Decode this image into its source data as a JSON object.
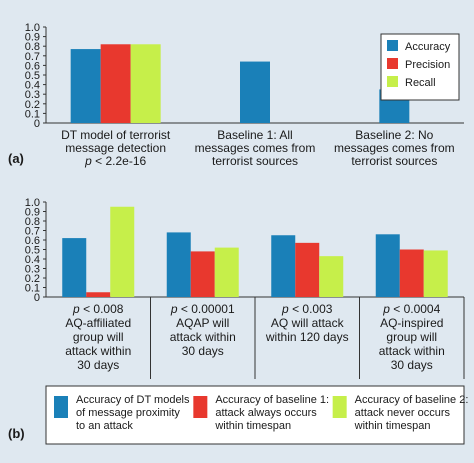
{
  "colors": {
    "background": "#dfe8f0",
    "accuracy": "#1a80b8",
    "precision": "#e8382e",
    "recall": "#c6ef4a"
  },
  "chart_data": [
    {
      "panel_label": "(a)",
      "type": "bar",
      "ylim": [
        0,
        1.0
      ],
      "yticks": [
        "0",
        "0.1",
        "0.2",
        "0.3",
        "0.4",
        "0.5",
        "0.6",
        "0.7",
        "0.8",
        "0.9",
        "1.0"
      ],
      "grid": false,
      "legend_position": "top-right",
      "categories": [
        {
          "lines": [
            "DT model of terrorist",
            "message detection"
          ],
          "pvalue": "p < 2.2e-16"
        },
        {
          "lines": [
            "Baseline 1: All",
            "messages comes from",
            "terrorist sources"
          ],
          "pvalue": ""
        },
        {
          "lines": [
            "Baseline 2: No",
            "messages comes from",
            "terrorist sources"
          ],
          "pvalue": ""
        }
      ],
      "series": [
        {
          "name": "Accuracy",
          "color_key": "accuracy",
          "values": [
            0.77,
            0.64,
            0.35
          ]
        },
        {
          "name": "Precision",
          "color_key": "precision",
          "values": [
            0.82,
            null,
            null
          ]
        },
        {
          "name": "Recall",
          "color_key": "recall",
          "values": [
            0.82,
            null,
            null
          ]
        }
      ]
    },
    {
      "panel_label": "(b)",
      "type": "bar",
      "ylim": [
        0,
        1.0
      ],
      "yticks": [
        "0",
        "0.1",
        "0.2",
        "0.3",
        "0.4",
        "0.5",
        "0.6",
        "0.7",
        "0.8",
        "0.9",
        "1.0"
      ],
      "grid": false,
      "legend_position": "bottom",
      "categories": [
        {
          "pvalue": "p < 0.008",
          "lines": [
            "AQ-affiliated",
            "group will",
            "attack within",
            "30 days"
          ]
        },
        {
          "pvalue": "p < 0.00001",
          "lines": [
            "AQAP will",
            "attack within",
            "30 days"
          ]
        },
        {
          "pvalue": "p < 0.003",
          "lines": [
            "AQ will attack",
            "within 120 days"
          ]
        },
        {
          "pvalue": "p < 0.0004",
          "lines": [
            "AQ-inspired",
            "group will",
            "attack within",
            "30 days"
          ]
        }
      ],
      "series": [
        {
          "name": [
            "Accuracy of DT models",
            "of message proximity",
            "to an attack"
          ],
          "color_key": "accuracy",
          "values": [
            0.62,
            0.68,
            0.65,
            0.66
          ]
        },
        {
          "name": [
            "Accuracy of baseline 1:",
            "attack always occurs",
            "within timespan"
          ],
          "color_key": "precision",
          "values": [
            0.05,
            0.48,
            0.57,
            0.5
          ]
        },
        {
          "name": [
            "Accuracy of baseline 2:",
            "attack never occurs",
            "within timespan"
          ],
          "color_key": "recall",
          "values": [
            0.95,
            0.52,
            0.43,
            0.49
          ]
        }
      ]
    }
  ]
}
